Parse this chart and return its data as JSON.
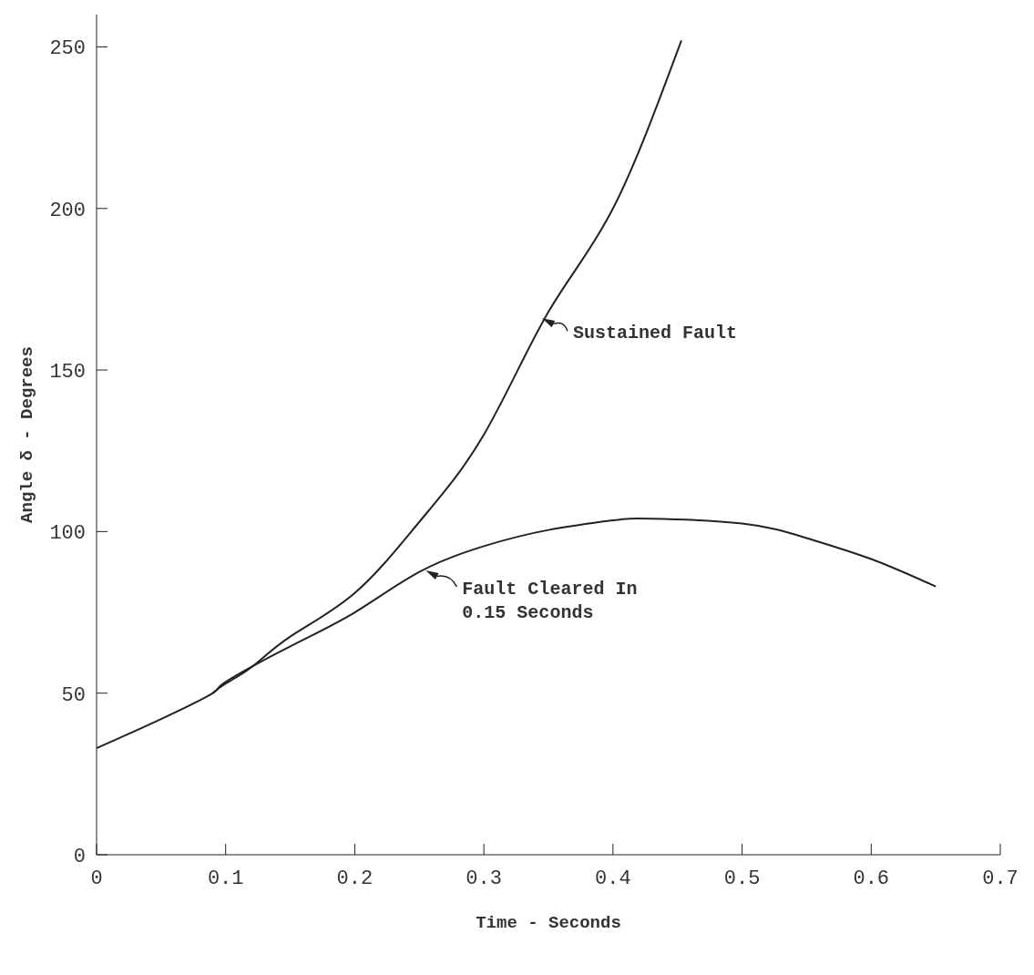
{
  "chart_data": {
    "type": "line",
    "xlabel": "Time - Seconds",
    "ylabel": "Angle δ - Degrees",
    "xlim": [
      0,
      0.7
    ],
    "xticks": [
      0,
      0.1,
      0.2,
      0.3,
      0.4,
      0.5,
      0.6,
      0.7
    ],
    "ylim": [
      0,
      260
    ],
    "yticks": [
      0,
      50,
      100,
      150,
      200,
      250
    ],
    "grid": false,
    "legend": false,
    "marker": "none",
    "line_style": "solid",
    "series": [
      {
        "color": "#222222",
        "x": [
          0.09,
          0.1,
          0.12,
          0.15,
          0.2,
          0.25,
          0.3,
          0.35,
          0.4,
          0.453
        ],
        "values": [
          50,
          53,
          58,
          67.5,
          81,
          103,
          130,
          168,
          200,
          252
        ]
      },
      {
        "color": "#222222",
        "x": [
          0,
          0.05,
          0.09,
          0.1,
          0.15,
          0.2,
          0.25,
          0.3,
          0.35,
          0.4,
          0.43,
          0.5,
          0.55,
          0.6,
          0.65
        ],
        "values": [
          33,
          42,
          50,
          53.5,
          64.5,
          75,
          87.5,
          95.5,
          100.5,
          103.5,
          104,
          102.5,
          98,
          91.5,
          83
        ]
      }
    ],
    "annotations": [
      {
        "text": "Sustained Fault",
        "x": 0.345,
        "y": 166
      },
      {
        "text": "Fault Cleared In\n0.15 Seconds",
        "x": 0.255,
        "y": 88
      }
    ]
  }
}
